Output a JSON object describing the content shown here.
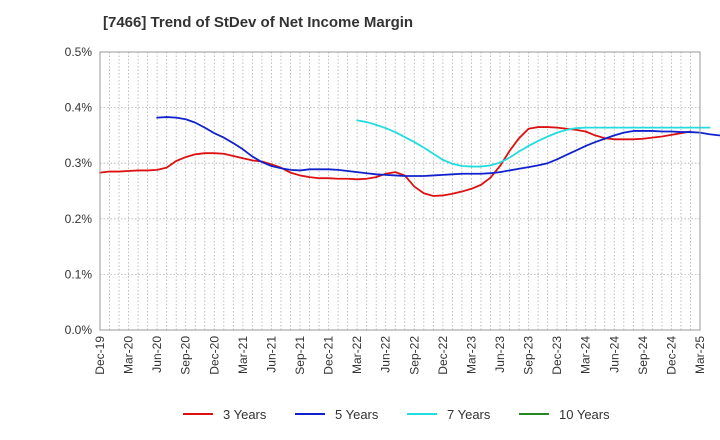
{
  "chart_data": {
    "type": "line",
    "title": "[7466]  Trend of StDev of Net Income Margin",
    "xlabel": "",
    "ylabel": "",
    "ylim": [
      0,
      0.5
    ],
    "yticks": [
      "0.0%",
      "0.1%",
      "0.2%",
      "0.3%",
      "0.4%",
      "0.5%"
    ],
    "x_tick_labels": [
      "Dec-19",
      "Mar-20",
      "Jun-20",
      "Sep-20",
      "Dec-20",
      "Mar-21",
      "Jun-21",
      "Sep-21",
      "Dec-21",
      "Mar-22",
      "Jun-22",
      "Sep-22",
      "Dec-22",
      "Mar-23",
      "Jun-23",
      "Sep-23",
      "Dec-23",
      "Mar-24",
      "Jun-24",
      "Sep-24",
      "Dec-24",
      "Mar-25"
    ],
    "grid": true,
    "legend_position": "bottom",
    "series": [
      {
        "name": "3 Years",
        "color": "#dd1111",
        "points": [
          [
            0,
            0.283
          ],
          [
            1,
            0.285
          ],
          [
            2,
            0.285
          ],
          [
            3,
            0.286
          ],
          [
            4,
            0.287
          ],
          [
            5,
            0.287
          ],
          [
            6,
            0.288
          ],
          [
            7,
            0.292
          ],
          [
            8,
            0.304
          ],
          [
            9,
            0.311
          ],
          [
            10,
            0.316
          ],
          [
            11,
            0.318
          ],
          [
            12,
            0.318
          ],
          [
            13,
            0.317
          ],
          [
            14,
            0.313
          ],
          [
            15,
            0.309
          ],
          [
            16,
            0.305
          ],
          [
            17,
            0.303
          ],
          [
            18,
            0.298
          ],
          [
            19,
            0.292
          ],
          [
            20,
            0.283
          ],
          [
            21,
            0.278
          ],
          [
            22,
            0.275
          ],
          [
            23,
            0.273
          ],
          [
            24,
            0.273
          ],
          [
            25,
            0.272
          ],
          [
            26,
            0.272
          ],
          [
            27,
            0.271
          ],
          [
            28,
            0.272
          ],
          [
            29,
            0.275
          ],
          [
            30,
            0.281
          ],
          [
            31,
            0.284
          ],
          [
            32,
            0.278
          ],
          [
            33,
            0.258
          ],
          [
            34,
            0.246
          ],
          [
            35,
            0.241
          ],
          [
            36,
            0.242
          ],
          [
            37,
            0.245
          ],
          [
            38,
            0.249
          ],
          [
            39,
            0.254
          ],
          [
            40,
            0.261
          ],
          [
            41,
            0.274
          ],
          [
            42,
            0.295
          ],
          [
            43,
            0.322
          ],
          [
            44,
            0.345
          ],
          [
            45,
            0.362
          ],
          [
            46,
            0.365
          ],
          [
            47,
            0.365
          ],
          [
            48,
            0.364
          ],
          [
            49,
            0.362
          ],
          [
            50,
            0.36
          ],
          [
            51,
            0.357
          ],
          [
            52,
            0.35
          ],
          [
            53,
            0.345
          ],
          [
            54,
            0.343
          ],
          [
            55,
            0.343
          ],
          [
            56,
            0.343
          ],
          [
            57,
            0.344
          ],
          [
            58,
            0.346
          ],
          [
            59,
            0.348
          ],
          [
            60,
            0.351
          ],
          [
            61,
            0.354
          ],
          [
            62,
            0.357
          ]
        ]
      },
      {
        "name": "5 Years",
        "color": "#1122cc",
        "points": [
          [
            6,
            0.382
          ],
          [
            7,
            0.383
          ],
          [
            8,
            0.382
          ],
          [
            9,
            0.379
          ],
          [
            10,
            0.373
          ],
          [
            11,
            0.364
          ],
          [
            12,
            0.354
          ],
          [
            13,
            0.346
          ],
          [
            14,
            0.336
          ],
          [
            15,
            0.325
          ],
          [
            16,
            0.312
          ],
          [
            17,
            0.302
          ],
          [
            18,
            0.295
          ],
          [
            19,
            0.291
          ],
          [
            20,
            0.288
          ],
          [
            21,
            0.287
          ],
          [
            22,
            0.289
          ],
          [
            23,
            0.289
          ],
          [
            24,
            0.289
          ],
          [
            25,
            0.288
          ],
          [
            26,
            0.286
          ],
          [
            27,
            0.284
          ],
          [
            28,
            0.282
          ],
          [
            29,
            0.28
          ],
          [
            30,
            0.279
          ],
          [
            31,
            0.278
          ],
          [
            32,
            0.277
          ],
          [
            33,
            0.277
          ],
          [
            34,
            0.277
          ],
          [
            35,
            0.278
          ],
          [
            36,
            0.279
          ],
          [
            37,
            0.28
          ],
          [
            38,
            0.281
          ],
          [
            39,
            0.281
          ],
          [
            40,
            0.281
          ],
          [
            41,
            0.282
          ],
          [
            42,
            0.284
          ],
          [
            43,
            0.287
          ],
          [
            44,
            0.29
          ],
          [
            45,
            0.293
          ],
          [
            46,
            0.296
          ],
          [
            47,
            0.3
          ],
          [
            48,
            0.307
          ],
          [
            49,
            0.315
          ],
          [
            50,
            0.323
          ],
          [
            51,
            0.331
          ],
          [
            52,
            0.338
          ],
          [
            53,
            0.344
          ],
          [
            54,
            0.35
          ],
          [
            55,
            0.355
          ],
          [
            56,
            0.358
          ],
          [
            57,
            0.358
          ],
          [
            58,
            0.358
          ],
          [
            59,
            0.357
          ],
          [
            60,
            0.357
          ],
          [
            61,
            0.356
          ],
          [
            62,
            0.356
          ],
          [
            63,
            0.355
          ],
          [
            64,
            0.352
          ],
          [
            65,
            0.35
          ],
          [
            66,
            0.35
          ],
          [
            67,
            0.351
          ],
          [
            68,
            0.351
          ]
        ]
      },
      {
        "name": "7 Years",
        "color": "#22dddd",
        "points": [
          [
            27,
            0.377
          ],
          [
            28,
            0.374
          ],
          [
            29,
            0.369
          ],
          [
            30,
            0.363
          ],
          [
            31,
            0.356
          ],
          [
            32,
            0.347
          ],
          [
            33,
            0.338
          ],
          [
            34,
            0.328
          ],
          [
            35,
            0.317
          ],
          [
            36,
            0.306
          ],
          [
            37,
            0.299
          ],
          [
            38,
            0.295
          ],
          [
            39,
            0.294
          ],
          [
            40,
            0.294
          ],
          [
            41,
            0.296
          ],
          [
            42,
            0.301
          ],
          [
            43,
            0.31
          ],
          [
            44,
            0.321
          ],
          [
            45,
            0.331
          ],
          [
            46,
            0.34
          ],
          [
            47,
            0.348
          ],
          [
            48,
            0.355
          ],
          [
            49,
            0.36
          ],
          [
            50,
            0.363
          ],
          [
            51,
            0.364
          ],
          [
            52,
            0.364
          ],
          [
            53,
            0.364
          ],
          [
            54,
            0.364
          ],
          [
            55,
            0.364
          ],
          [
            56,
            0.364
          ],
          [
            57,
            0.364
          ],
          [
            58,
            0.364
          ],
          [
            59,
            0.364
          ],
          [
            60,
            0.364
          ],
          [
            61,
            0.364
          ],
          [
            62,
            0.364
          ],
          [
            63,
            0.364
          ],
          [
            64,
            0.364
          ]
        ]
      },
      {
        "name": "10 Years",
        "color": "#228822",
        "points": []
      }
    ]
  }
}
